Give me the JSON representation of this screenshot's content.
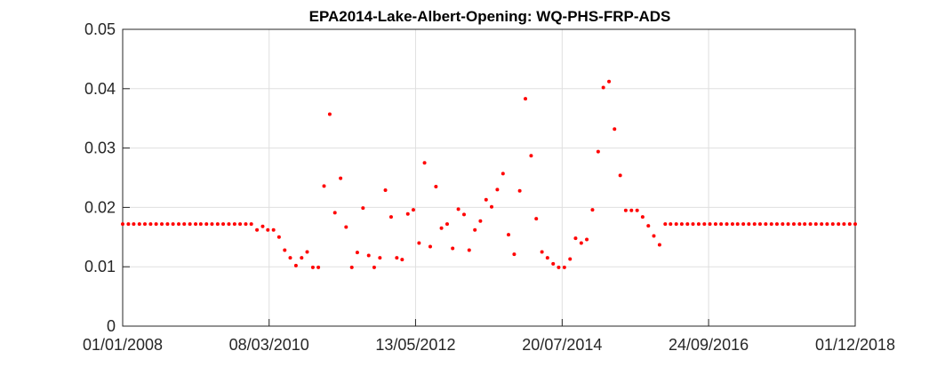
{
  "chart_data": {
    "type": "scatter",
    "title": "EPA2014-Lake-Albert-Opening: WQ-PHS-FRP-ADS",
    "xlabel": "",
    "ylabel": "",
    "xlim": [
      "2008-01-01",
      "2018-12-01"
    ],
    "ylim": [
      0,
      0.05
    ],
    "x_ticks": [
      "01/01/2008",
      "08/03/2010",
      "13/05/2012",
      "20/07/2014",
      "24/09/2016",
      "01/12/2018"
    ],
    "y_ticks": [
      "0",
      "0.01",
      "0.02",
      "0.03",
      "0.04",
      "0.05"
    ],
    "grid": true,
    "marker_color": "#ff0000",
    "series": [
      {
        "points": [
          [
            "2008-01-01",
            0.0172
          ],
          [
            "2008-02-01",
            0.0172
          ],
          [
            "2008-03-01",
            0.0172
          ],
          [
            "2008-04-01",
            0.0172
          ],
          [
            "2008-05-01",
            0.0172
          ],
          [
            "2008-06-01",
            0.0172
          ],
          [
            "2008-07-01",
            0.0172
          ],
          [
            "2008-08-01",
            0.0172
          ],
          [
            "2008-09-01",
            0.0172
          ],
          [
            "2008-10-01",
            0.0172
          ],
          [
            "2008-11-01",
            0.0172
          ],
          [
            "2008-12-01",
            0.0172
          ],
          [
            "2009-01-01",
            0.0172
          ],
          [
            "2009-02-01",
            0.0172
          ],
          [
            "2009-03-01",
            0.0172
          ],
          [
            "2009-04-01",
            0.0172
          ],
          [
            "2009-05-01",
            0.0172
          ],
          [
            "2009-06-01",
            0.0172
          ],
          [
            "2009-07-01",
            0.0172
          ],
          [
            "2009-08-01",
            0.0172
          ],
          [
            "2009-09-01",
            0.0172
          ],
          [
            "2009-10-01",
            0.0172
          ],
          [
            "2009-11-01",
            0.0172
          ],
          [
            "2009-12-01",
            0.0172
          ],
          [
            "2010-01-01",
            0.0162
          ],
          [
            "2010-02-01",
            0.0168
          ],
          [
            "2010-03-01",
            0.0162
          ],
          [
            "2010-04-01",
            0.0162
          ],
          [
            "2010-05-01",
            0.015
          ],
          [
            "2010-06-01",
            0.0128
          ],
          [
            "2010-07-01",
            0.0115
          ],
          [
            "2010-08-01",
            0.0102
          ],
          [
            "2010-09-01",
            0.0115
          ],
          [
            "2010-10-01",
            0.0125
          ],
          [
            "2010-11-01",
            0.0099
          ],
          [
            "2010-12-01",
            0.0099
          ],
          [
            "2011-01-01",
            0.0236
          ],
          [
            "2011-02-01",
            0.0357
          ],
          [
            "2011-03-01",
            0.0191
          ],
          [
            "2011-04-01",
            0.0249
          ],
          [
            "2011-05-01",
            0.0167
          ],
          [
            "2011-06-01",
            0.0099
          ],
          [
            "2011-07-01",
            0.0124
          ],
          [
            "2011-08-01",
            0.0199
          ],
          [
            "2011-09-01",
            0.0119
          ],
          [
            "2011-10-01",
            0.0099
          ],
          [
            "2011-11-01",
            0.0115
          ],
          [
            "2011-12-01",
            0.0229
          ],
          [
            "2012-01-01",
            0.0184
          ],
          [
            "2012-02-01",
            0.0115
          ],
          [
            "2012-03-01",
            0.0112
          ],
          [
            "2012-04-01",
            0.0189
          ],
          [
            "2012-05-01",
            0.0196
          ],
          [
            "2012-06-01",
            0.014
          ],
          [
            "2012-07-01",
            0.0275
          ],
          [
            "2012-08-01",
            0.0134
          ],
          [
            "2012-09-01",
            0.0235
          ],
          [
            "2012-10-01",
            0.0165
          ],
          [
            "2012-11-01",
            0.0172
          ],
          [
            "2012-12-01",
            0.0131
          ],
          [
            "2013-01-01",
            0.0197
          ],
          [
            "2013-02-01",
            0.0188
          ],
          [
            "2013-03-01",
            0.0128
          ],
          [
            "2013-04-01",
            0.0162
          ],
          [
            "2013-05-01",
            0.0177
          ],
          [
            "2013-06-01",
            0.0213
          ],
          [
            "2013-07-01",
            0.0201
          ],
          [
            "2013-08-01",
            0.023
          ],
          [
            "2013-09-01",
            0.0257
          ],
          [
            "2013-10-01",
            0.0154
          ],
          [
            "2013-11-01",
            0.0121
          ],
          [
            "2013-12-01",
            0.0228
          ],
          [
            "2014-01-01",
            0.0383
          ],
          [
            "2014-02-01",
            0.0287
          ],
          [
            "2014-03-01",
            0.0181
          ],
          [
            "2014-04-01",
            0.0125
          ],
          [
            "2014-05-01",
            0.0115
          ],
          [
            "2014-06-01",
            0.0105
          ],
          [
            "2014-07-01",
            0.0099
          ],
          [
            "2014-08-01",
            0.0099
          ],
          [
            "2014-09-01",
            0.0113
          ],
          [
            "2014-10-01",
            0.0148
          ],
          [
            "2014-11-01",
            0.014
          ],
          [
            "2014-12-01",
            0.0146
          ],
          [
            "2015-01-01",
            0.0196
          ],
          [
            "2015-02-01",
            0.0294
          ],
          [
            "2015-03-01",
            0.0402
          ],
          [
            "2015-04-01",
            0.0412
          ],
          [
            "2015-05-01",
            0.0332
          ],
          [
            "2015-06-01",
            0.0254
          ],
          [
            "2015-07-01",
            0.0195
          ],
          [
            "2015-08-01",
            0.0195
          ],
          [
            "2015-09-01",
            0.0195
          ],
          [
            "2015-10-01",
            0.0184
          ],
          [
            "2015-11-01",
            0.0169
          ],
          [
            "2015-12-01",
            0.0152
          ],
          [
            "2016-01-01",
            0.0137
          ],
          [
            "2016-02-01",
            0.0172
          ],
          [
            "2016-03-01",
            0.0172
          ],
          [
            "2016-04-01",
            0.0172
          ],
          [
            "2016-05-01",
            0.0172
          ],
          [
            "2016-06-01",
            0.0172
          ],
          [
            "2016-07-01",
            0.0172
          ],
          [
            "2016-08-01",
            0.0172
          ],
          [
            "2016-09-01",
            0.0172
          ],
          [
            "2016-10-01",
            0.0172
          ],
          [
            "2016-11-01",
            0.0172
          ],
          [
            "2016-12-01",
            0.0172
          ],
          [
            "2017-01-01",
            0.0172
          ],
          [
            "2017-02-01",
            0.0172
          ],
          [
            "2017-03-01",
            0.0172
          ],
          [
            "2017-04-01",
            0.0172
          ],
          [
            "2017-05-01",
            0.0172
          ],
          [
            "2017-06-01",
            0.0172
          ],
          [
            "2017-07-01",
            0.0172
          ],
          [
            "2017-08-01",
            0.0172
          ],
          [
            "2017-09-01",
            0.0172
          ],
          [
            "2017-10-01",
            0.0172
          ],
          [
            "2017-11-01",
            0.0172
          ],
          [
            "2017-12-01",
            0.0172
          ],
          [
            "2018-01-01",
            0.0172
          ],
          [
            "2018-02-01",
            0.0172
          ],
          [
            "2018-03-01",
            0.0172
          ],
          [
            "2018-04-01",
            0.0172
          ],
          [
            "2018-05-01",
            0.0172
          ],
          [
            "2018-06-01",
            0.0172
          ],
          [
            "2018-07-01",
            0.0172
          ],
          [
            "2018-08-01",
            0.0172
          ],
          [
            "2018-09-01",
            0.0172
          ],
          [
            "2018-10-01",
            0.0172
          ],
          [
            "2018-11-01",
            0.0172
          ],
          [
            "2018-12-01",
            0.0172
          ]
        ]
      }
    ]
  }
}
